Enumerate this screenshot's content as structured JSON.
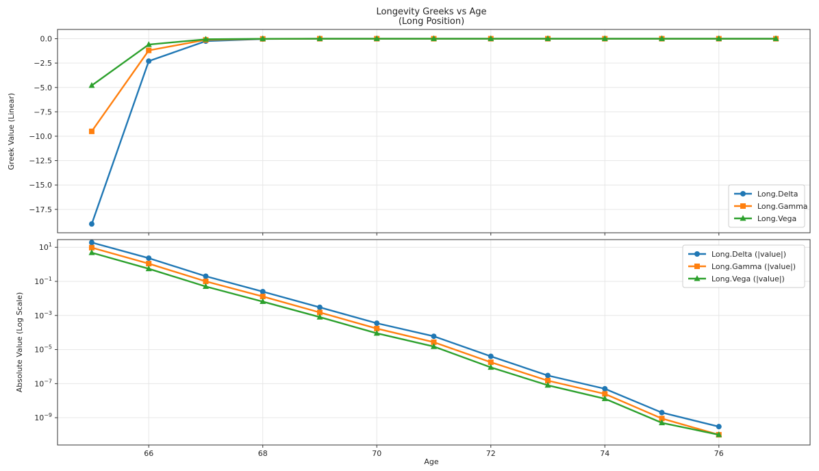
{
  "chart_data": [
    {
      "type": "line",
      "title": "Longevity Greeks vs Age",
      "subtitle": "(Long Position)",
      "ylabel": "Greek Value (Linear)",
      "xlabel": "",
      "xlim": [
        64.4,
        77.6
      ],
      "ylim": [
        -19.9,
        0.95
      ],
      "yscale": "linear",
      "xticks": [
        66,
        68,
        70,
        72,
        74,
        76
      ],
      "xtick_labels_visible": false,
      "yticks": [
        0.0,
        -2.5,
        -5.0,
        -7.5,
        -10.0,
        -12.5,
        -15.0,
        -17.5
      ],
      "ytick_labels": [
        "0.0",
        "−2.5",
        "−5.0",
        "−7.5",
        "−10.0",
        "−12.5",
        "−15.0",
        "−17.5"
      ],
      "grid": true,
      "legend_position": "lower-right",
      "x": [
        65,
        66,
        67,
        68,
        69,
        70,
        71,
        72,
        73,
        74,
        75,
        76,
        77
      ],
      "series": [
        {
          "name": "Long.Delta",
          "color": "#1f77b4",
          "marker": "circle",
          "values": [
            -19.0,
            -2.3,
            -0.25,
            -0.03,
            0,
            0,
            0,
            0,
            0,
            0,
            0,
            0,
            0
          ]
        },
        {
          "name": "Long.Gamma",
          "color": "#ff7f0e",
          "marker": "square",
          "values": [
            -9.5,
            -1.2,
            -0.12,
            -0.015,
            0,
            0,
            0,
            0,
            0,
            0,
            0,
            0,
            0
          ]
        },
        {
          "name": "Long.Vega",
          "color": "#2ca02c",
          "marker": "triangle",
          "values": [
            -4.8,
            -0.6,
            -0.06,
            -0.008,
            0,
            0,
            0,
            0,
            0,
            0,
            0,
            0,
            0
          ]
        }
      ]
    },
    {
      "type": "line",
      "title": "",
      "ylabel": "Absolute Value (Log Scale)",
      "xlabel": "Age",
      "xlim": [
        64.4,
        77.6
      ],
      "ylim_exp": [
        -10.6,
        1.45
      ],
      "yscale": "log",
      "xticks": [
        66,
        68,
        70,
        72,
        74,
        76
      ],
      "xtick_labels": [
        "66",
        "68",
        "70",
        "72",
        "74",
        "76"
      ],
      "ytick_exps": [
        1,
        -1,
        -3,
        -5,
        -7,
        -9
      ],
      "ytick_labels": [
        {
          "base": "10",
          "exp": "1"
        },
        {
          "base": "10",
          "exp": "−1"
        },
        {
          "base": "10",
          "exp": "−3"
        },
        {
          "base": "10",
          "exp": "−5"
        },
        {
          "base": "10",
          "exp": "−7"
        },
        {
          "base": "10",
          "exp": "−9"
        }
      ],
      "grid": true,
      "legend_position": "upper-right",
      "x": [
        65,
        66,
        67,
        68,
        69,
        70,
        71,
        72,
        73,
        74,
        75,
        76
      ],
      "series": [
        {
          "name": "Long.Delta (|value|)",
          "color": "#1f77b4",
          "marker": "circle",
          "values": [
            19.0,
            2.3,
            0.2,
            0.025,
            0.003,
            0.00035,
            6e-05,
            4e-06,
            3e-07,
            5e-08,
            2e-09,
            3e-10
          ]
        },
        {
          "name": "Long.Gamma (|value|)",
          "color": "#ff7f0e",
          "marker": "square",
          "values": [
            9.5,
            1.1,
            0.1,
            0.013,
            0.0015,
            0.00017,
            2.7e-05,
            1.8e-06,
            1.5e-07,
            2.5e-08,
            9e-10,
            1e-10
          ]
        },
        {
          "name": "Long.Vega (|value|)",
          "color": "#2ca02c",
          "marker": "triangle",
          "values": [
            4.8,
            0.55,
            0.05,
            0.0065,
            0.0008,
            9e-05,
            1.5e-05,
            9e-07,
            8e-08,
            1.3e-08,
            5e-10,
            1e-10
          ]
        }
      ]
    }
  ]
}
